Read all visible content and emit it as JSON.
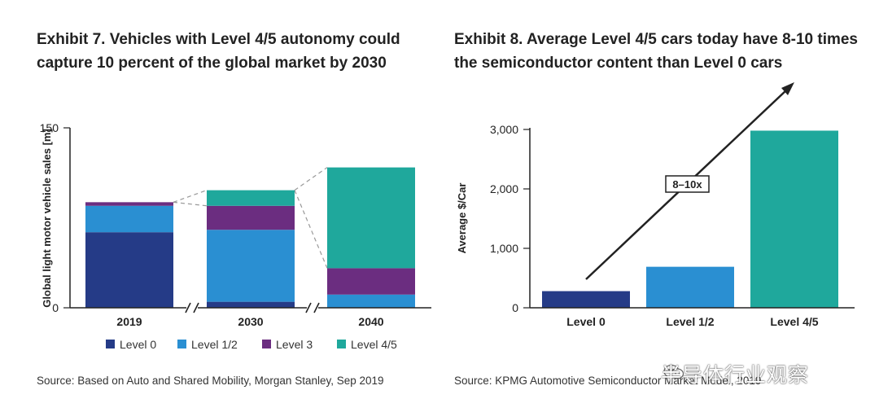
{
  "left": {
    "title": "Exhibit 7. Vehicles with Level 4/5 autonomy could capture 10 percent of the global market by 2030",
    "source": "Source: Based on Auto and Shared Mobility, Morgan Stanley, Sep 2019"
  },
  "right": {
    "title": "Exhibit 8. Average Level 4/5 cars today have 8-10 times the semiconductor content than Level 0 cars",
    "source": "Source: KPMG Automotive Semiconductor Market Model, 2019"
  },
  "watermark": "半导体行业观察",
  "colors": {
    "level0": "#253b87",
    "level12": "#2a8fd2",
    "level3": "#6b2d80",
    "level45": "#1fa89c"
  },
  "chart_data": [
    {
      "type": "bar",
      "stacked": true,
      "title": "Exhibit 7. Vehicles with Level 4/5 autonomy could capture 10 percent of the global market by 2030",
      "ylabel": "Global light motor vehicle sales [m]",
      "xlabel": "",
      "ylim": [
        0,
        150
      ],
      "yticks": [
        "0",
        "150"
      ],
      "axis_break_marks": [
        "//",
        "//"
      ],
      "categories": [
        "2019",
        "2030",
        "2040"
      ],
      "series": [
        {
          "name": "Level 0",
          "values": [
            63,
            5,
            0
          ]
        },
        {
          "name": "Level 1/2",
          "values": [
            22,
            60,
            11
          ]
        },
        {
          "name": "Level 3",
          "values": [
            3,
            20,
            22
          ]
        },
        {
          "name": "Level 4/5",
          "values": [
            0,
            13,
            84
          ]
        }
      ],
      "legend": [
        "Level 0",
        "Level 1/2",
        "Level 3",
        "Level 4/5"
      ],
      "legend_position": "bottom"
    },
    {
      "type": "bar",
      "title": "Exhibit 8. Average Level 4/5 cars today have 8-10 times the semiconductor content than Level 0 cars",
      "ylabel": "Average $/Car",
      "xlabel": "",
      "ylim": [
        0,
        3000
      ],
      "yticks": [
        "0",
        "1,000",
        "2,000",
        "3,000"
      ],
      "categories": [
        "Level 0",
        "Level 1/2",
        "Level 4/5"
      ],
      "values": [
        280,
        690,
        2980
      ],
      "annotation": "8–10x"
    }
  ]
}
